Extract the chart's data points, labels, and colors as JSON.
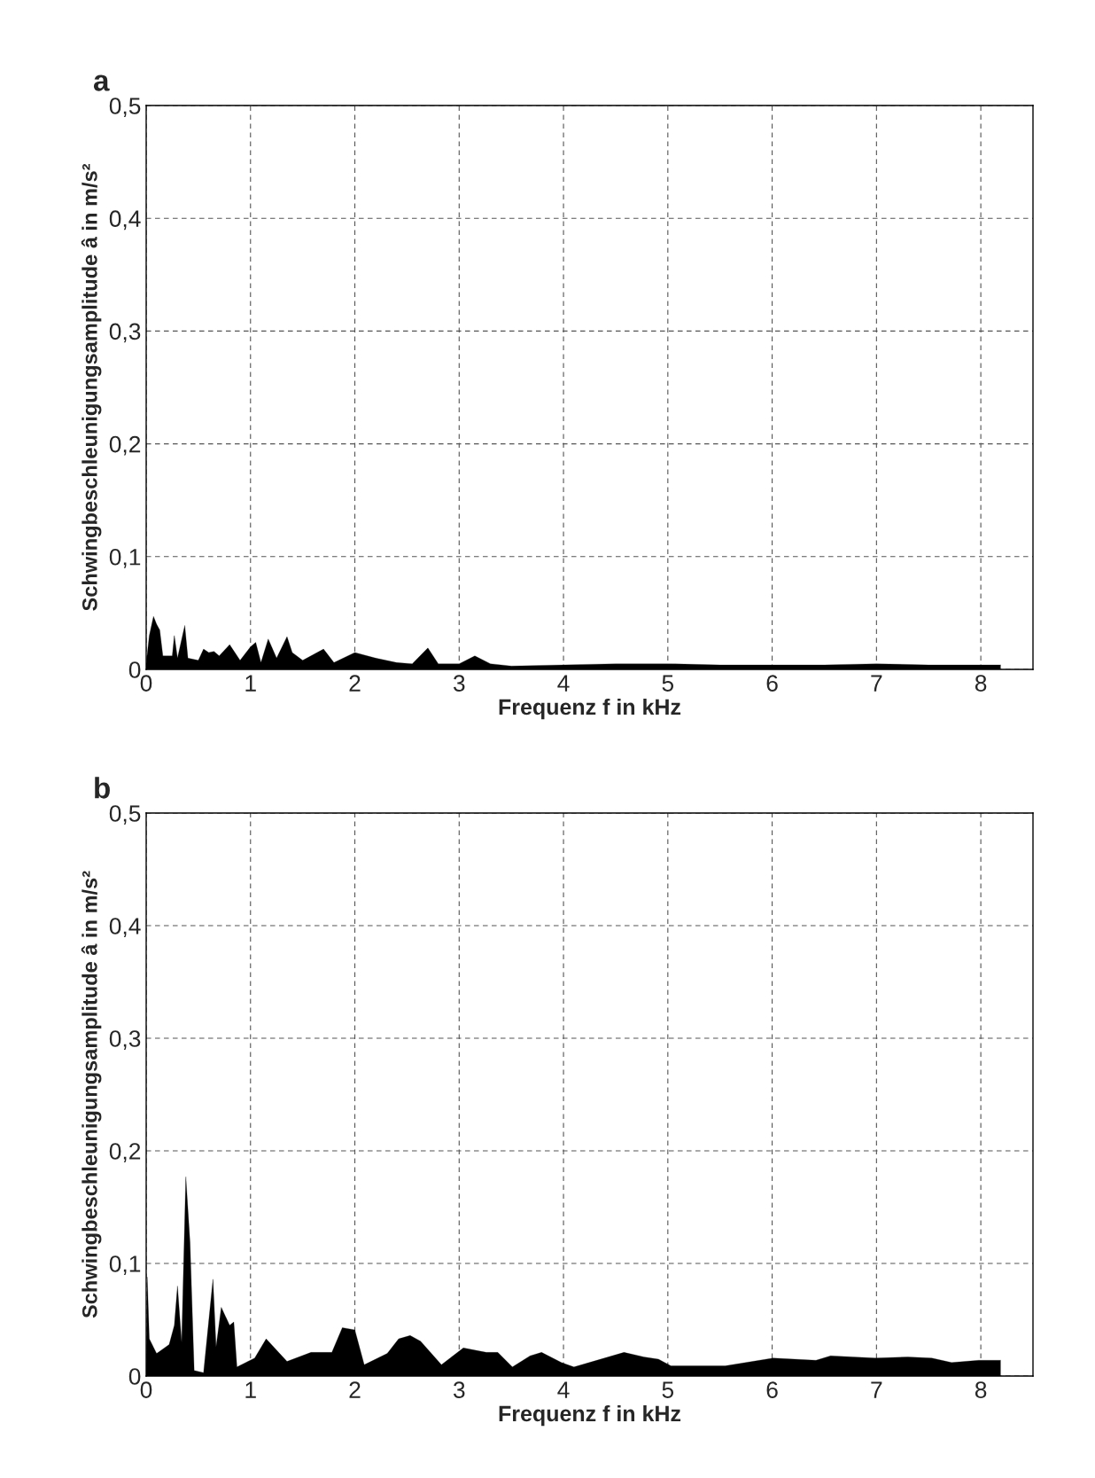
{
  "chart_data": [
    {
      "type": "area",
      "title": "a",
      "xlabel": "Frequenz f in kHz",
      "ylabel": "Schwingbeschleunigungsamplitude â in m/s²",
      "color": "#000000",
      "x": [
        0.0,
        0.03,
        0.07,
        0.1,
        0.13,
        0.16,
        0.25,
        0.27,
        0.3,
        0.37,
        0.4,
        0.5,
        0.55,
        0.6,
        0.65,
        0.7,
        0.8,
        0.9,
        1.0,
        1.05,
        1.1,
        1.17,
        1.25,
        1.35,
        1.4,
        1.5,
        1.7,
        1.8,
        2.0,
        2.2,
        2.4,
        2.55,
        2.7,
        2.8,
        3.0,
        3.15,
        3.3,
        3.5,
        4.0,
        4.5,
        5.0,
        5.5,
        6.0,
        6.5,
        7.0,
        7.5,
        8.0,
        8.19
      ],
      "values": [
        0.005,
        0.03,
        0.047,
        0.04,
        0.035,
        0.012,
        0.012,
        0.03,
        0.01,
        0.039,
        0.01,
        0.008,
        0.018,
        0.015,
        0.016,
        0.012,
        0.022,
        0.008,
        0.02,
        0.024,
        0.006,
        0.027,
        0.01,
        0.029,
        0.015,
        0.008,
        0.018,
        0.006,
        0.015,
        0.01,
        0.006,
        0.005,
        0.019,
        0.005,
        0.005,
        0.012,
        0.005,
        0.003,
        0.004,
        0.005,
        0.005,
        0.004,
        0.004,
        0.004,
        0.005,
        0.004,
        0.004,
        0.004
      ],
      "xlim": [
        0,
        8.5
      ],
      "ylim": [
        0,
        0.5
      ],
      "xticks": [
        0,
        1,
        2,
        3,
        4,
        5,
        6,
        7,
        8
      ],
      "yticks": [
        0,
        {
          "value": 0.1,
          "label": "0,1"
        },
        {
          "value": 0.2,
          "label": "0,2"
        },
        {
          "value": 0.3,
          "label": "0,3"
        },
        {
          "value": 0.4,
          "label": "0,4"
        },
        {
          "value": 0.5,
          "label": "0,5"
        }
      ],
      "grid": true,
      "legend": false
    },
    {
      "type": "area",
      "title": "b",
      "xlabel": "Frequenz f in kHz",
      "ylabel": "Schwingbeschleunigungsamplitude â in m/s²",
      "color": "#000000",
      "x": [
        0.0,
        0.01,
        0.03,
        0.1,
        0.22,
        0.27,
        0.3,
        0.34,
        0.38,
        0.42,
        0.46,
        0.55,
        0.64,
        0.67,
        0.72,
        0.8,
        0.84,
        0.87,
        1.04,
        1.15,
        1.35,
        1.58,
        1.78,
        1.88,
        2.0,
        2.09,
        2.31,
        2.42,
        2.53,
        2.63,
        2.83,
        3.04,
        3.26,
        3.37,
        3.51,
        3.68,
        3.79,
        3.98,
        4.1,
        4.58,
        4.77,
        4.91,
        5.03,
        5.55,
        6.01,
        6.42,
        6.56,
        6.99,
        7.3,
        7.53,
        7.72,
        7.98,
        8.15,
        8.19
      ],
      "values": [
        0.003,
        0.088,
        0.033,
        0.02,
        0.028,
        0.045,
        0.08,
        0.03,
        0.177,
        0.119,
        0.005,
        0.003,
        0.086,
        0.026,
        0.061,
        0.045,
        0.048,
        0.008,
        0.016,
        0.033,
        0.013,
        0.021,
        0.021,
        0.043,
        0.041,
        0.01,
        0.02,
        0.033,
        0.036,
        0.031,
        0.01,
        0.025,
        0.021,
        0.021,
        0.008,
        0.018,
        0.021,
        0.012,
        0.008,
        0.021,
        0.017,
        0.015,
        0.009,
        0.009,
        0.016,
        0.014,
        0.018,
        0.016,
        0.017,
        0.016,
        0.012,
        0.014,
        0.014,
        0.014
      ],
      "xlim": [
        0,
        8.5
      ],
      "ylim": [
        0,
        0.5
      ],
      "xticks": [
        0,
        1,
        2,
        3,
        4,
        5,
        6,
        7,
        8
      ],
      "yticks": [
        0,
        {
          "value": 0.1,
          "label": "0,1"
        },
        {
          "value": 0.2,
          "label": "0,2"
        },
        {
          "value": 0.3,
          "label": "0,3"
        },
        {
          "value": 0.4,
          "label": "0,4"
        },
        {
          "value": 0.5,
          "label": "0,5"
        }
      ],
      "grid": true,
      "legend": false
    }
  ]
}
